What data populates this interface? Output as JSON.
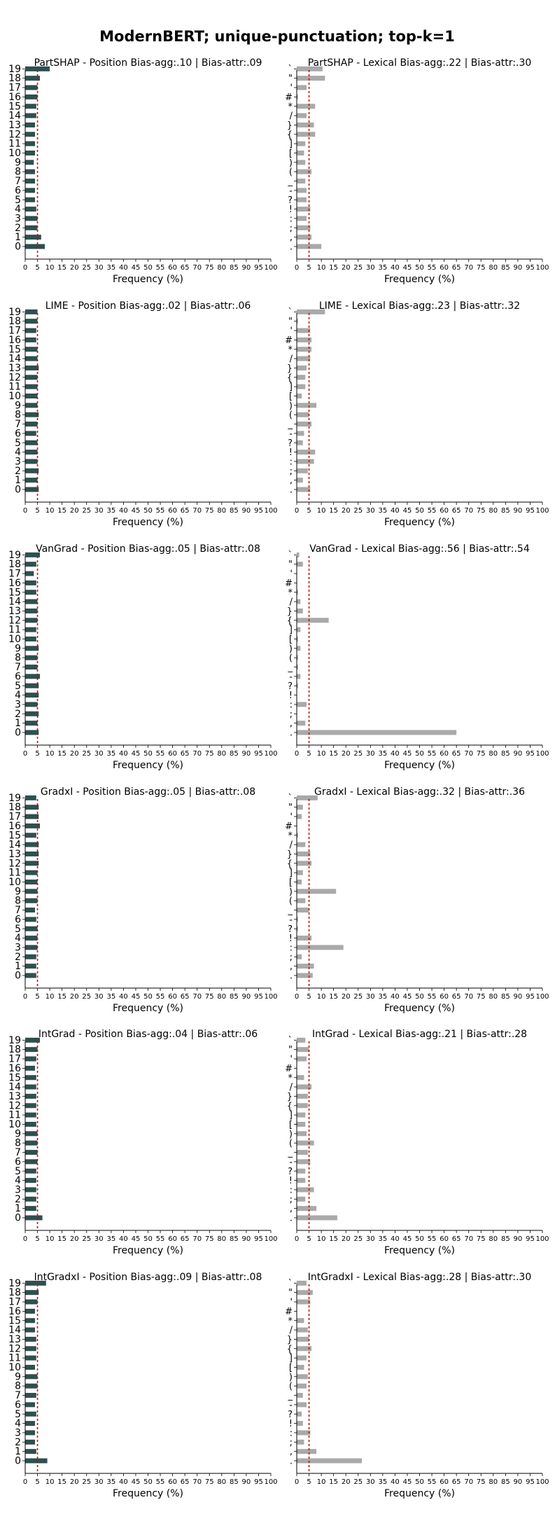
{
  "title": "ModernBERT; unique-punctuation; top-k=1",
  "colors": {
    "position_bar": "#2f4f4f",
    "lexical_bar": "#a9a9a9",
    "reference_line": "#cc0000"
  },
  "chart_data": [
    {
      "type": "bar",
      "orientation": "horizontal",
      "title": "PartSHAP - Position Bias-agg:.10 | Bias-attr:.09",
      "xlabel": "Frequency (%)",
      "xlim": [
        0,
        100
      ],
      "reference_x": 5,
      "bar_color": "#2f4f4f",
      "categories": [
        "0",
        "1",
        "2",
        "3",
        "4",
        "5",
        "6",
        "7",
        "8",
        "9",
        "10",
        "11",
        "12",
        "13",
        "14",
        "15",
        "16",
        "17",
        "18",
        "19"
      ],
      "values": [
        8,
        6.5,
        5,
        5,
        4.5,
        4,
        4,
        4,
        4,
        3.5,
        4,
        4,
        4,
        4,
        4.5,
        4.5,
        5,
        5,
        6,
        10
      ]
    },
    {
      "type": "bar",
      "orientation": "horizontal",
      "title": "PartSHAP - Lexical Bias-agg:.22 | Bias-attr:.30",
      "xlabel": "Frequency (%)",
      "xlim": [
        0,
        100
      ],
      "reference_x": 5,
      "bar_color": "#a9a9a9",
      "categories": [
        ".",
        ",",
        ";",
        ":",
        "!",
        "?",
        "-",
        "_",
        "(",
        ")",
        "[",
        "]",
        "{",
        "}",
        "/",
        "*",
        "#",
        "'",
        "\"",
        "`"
      ],
      "values": [
        10,
        6,
        5.5,
        4,
        5.5,
        4,
        4,
        3.5,
        6,
        3.5,
        3,
        3.5,
        7.5,
        7,
        4,
        7.5,
        0.5,
        4,
        11.5,
        10.5
      ]
    },
    {
      "type": "bar",
      "orientation": "horizontal",
      "title": "LIME - Position Bias-agg:.02 | Bias-attr:.06",
      "xlabel": "Frequency (%)",
      "xlim": [
        0,
        100
      ],
      "reference_x": 5,
      "bar_color": "#2f4f4f",
      "categories": [
        "0",
        "1",
        "2",
        "3",
        "4",
        "5",
        "6",
        "7",
        "8",
        "9",
        "10",
        "11",
        "12",
        "13",
        "14",
        "15",
        "16",
        "17",
        "18",
        "19"
      ],
      "values": [
        5.5,
        5,
        5.5,
        5,
        5,
        5,
        4.5,
        5,
        5.5,
        5,
        5,
        5,
        5,
        5.5,
        5,
        5,
        4.5,
        4.5,
        5,
        5
      ]
    },
    {
      "type": "bar",
      "orientation": "horizontal",
      "title": "LIME - Lexical Bias-agg:.23 | Bias-attr:.32",
      "xlabel": "Frequency (%)",
      "xlim": [
        0,
        100
      ],
      "reference_x": 5,
      "bar_color": "#a9a9a9",
      "categories": [
        ".",
        ",",
        ";",
        ":",
        "!",
        "?",
        "-",
        "_",
        "(",
        ")",
        "[",
        "]",
        "{",
        "}",
        "/",
        "*",
        "#",
        "'",
        "\"",
        "`"
      ],
      "values": [
        5.5,
        2.5,
        4.5,
        7,
        7.5,
        2.5,
        3,
        6,
        5,
        8,
        2,
        3.5,
        3.5,
        4,
        5.5,
        6,
        6,
        5.5,
        0.5,
        11.5
      ]
    },
    {
      "type": "bar",
      "orientation": "horizontal",
      "title": "VanGrad - Position Bias-agg:.05 | Bias-attr:.08",
      "xlabel": "Frequency (%)",
      "xlim": [
        0,
        100
      ],
      "reference_x": 5,
      "bar_color": "#2f4f4f",
      "categories": [
        "0",
        "1",
        "2",
        "3",
        "4",
        "5",
        "6",
        "7",
        "8",
        "9",
        "10",
        "11",
        "12",
        "13",
        "14",
        "15",
        "16",
        "17",
        "18",
        "19"
      ],
      "values": [
        5.5,
        5,
        5.5,
        5,
        5.5,
        5.5,
        6,
        5,
        5,
        5.5,
        4.5,
        4.5,
        5,
        5,
        5,
        4.5,
        4.5,
        3.5,
        4.5,
        6
      ]
    },
    {
      "type": "bar",
      "orientation": "horizontal",
      "title": "VanGrad - Lexical Bias-agg:.56 | Bias-attr:.54",
      "xlabel": "Frequency (%)",
      "xlim": [
        0,
        100
      ],
      "reference_x": 5,
      "bar_color": "#a9a9a9",
      "categories": [
        ".",
        ",",
        ";",
        ":",
        "!",
        "?",
        "-",
        "_",
        "(",
        ")",
        "[",
        "]",
        "{",
        "}",
        "/",
        "*",
        "#",
        "'",
        "\"",
        "`"
      ],
      "values": [
        65,
        3.5,
        0,
        4,
        0,
        0.5,
        1.5,
        0.5,
        0.5,
        1.5,
        0.5,
        1.5,
        13,
        2.5,
        1.5,
        0.5,
        0,
        0,
        2.5,
        1
      ]
    },
    {
      "type": "bar",
      "orientation": "horizontal",
      "title": "GradxI - Position Bias-agg:.05 | Bias-attr:.08",
      "xlabel": "Frequency (%)",
      "xlim": [
        0,
        100
      ],
      "reference_x": 5,
      "bar_color": "#2f4f4f",
      "categories": [
        "0",
        "1",
        "2",
        "3",
        "4",
        "5",
        "6",
        "7",
        "8",
        "9",
        "10",
        "11",
        "12",
        "13",
        "14",
        "15",
        "16",
        "17",
        "18",
        "19"
      ],
      "values": [
        4.5,
        4.5,
        4.5,
        5,
        5,
        5,
        4.5,
        4,
        5,
        5,
        5,
        5,
        5.5,
        5.5,
        5.5,
        4.5,
        6,
        5.5,
        5.5,
        4.5
      ]
    },
    {
      "type": "bar",
      "orientation": "horizontal",
      "title": "GradxI - Lexical Bias-agg:.32 | Bias-attr:.36",
      "xlabel": "Frequency (%)",
      "xlim": [
        0,
        100
      ],
      "reference_x": 5,
      "bar_color": "#a9a9a9",
      "categories": [
        ".",
        ",",
        ";",
        ":",
        "!",
        "?",
        "-",
        "_",
        "(",
        ")",
        "[",
        "]",
        "{",
        "}",
        "/",
        "*",
        "#",
        "'",
        "\"",
        "`"
      ],
      "values": [
        6.5,
        7,
        2,
        19,
        6,
        0.5,
        0.5,
        5,
        3.5,
        16,
        2,
        2.5,
        6,
        5.5,
        3.5,
        0.5,
        0,
        2,
        2.5,
        8.5
      ]
    },
    {
      "type": "bar",
      "orientation": "horizontal",
      "title": "IntGrad - Position Bias-agg:.04 | Bias-attr:.06",
      "xlabel": "Frequency (%)",
      "xlim": [
        0,
        100
      ],
      "reference_x": 5,
      "bar_color": "#2f4f4f",
      "categories": [
        "0",
        "1",
        "2",
        "3",
        "4",
        "5",
        "6",
        "7",
        "8",
        "9",
        "10",
        "11",
        "12",
        "13",
        "14",
        "15",
        "16",
        "17",
        "18",
        "19"
      ],
      "values": [
        7,
        4.5,
        4.5,
        4.5,
        4.5,
        4.5,
        5,
        5,
        5,
        5,
        4.5,
        4.5,
        4.5,
        4.5,
        4.5,
        4.5,
        4,
        4.5,
        5,
        6
      ]
    },
    {
      "type": "bar",
      "orientation": "horizontal",
      "title": "IntGrad - Lexical Bias-agg:.21 | Bias-attr:.28",
      "xlabel": "Frequency (%)",
      "xlim": [
        0,
        100
      ],
      "reference_x": 5,
      "bar_color": "#a9a9a9",
      "categories": [
        ".",
        ",",
        ";",
        ":",
        "!",
        "?",
        "-",
        "_",
        "(",
        ")",
        "[",
        "]",
        "{",
        "}",
        "/",
        "*",
        "#",
        "'",
        "\"",
        "`"
      ],
      "values": [
        16.5,
        8,
        3.5,
        7,
        3.5,
        3.5,
        5.5,
        4.5,
        7,
        4,
        3.5,
        3.5,
        4.5,
        4.5,
        6,
        3,
        0,
        4,
        5,
        3.5
      ]
    },
    {
      "type": "bar",
      "orientation": "horizontal",
      "title": "IntGradxI - Position Bias-agg:.09 | Bias-attr:.08",
      "xlabel": "Frequency (%)",
      "xlim": [
        0,
        100
      ],
      "reference_x": 5,
      "bar_color": "#2f4f4f",
      "categories": [
        "0",
        "1",
        "2",
        "3",
        "4",
        "5",
        "6",
        "7",
        "8",
        "9",
        "10",
        "11",
        "12",
        "13",
        "14",
        "15",
        "16",
        "17",
        "18",
        "19"
      ],
      "values": [
        9,
        4.5,
        4,
        4,
        4,
        4.5,
        4,
        4.5,
        5,
        5,
        4,
        4.5,
        4.5,
        4.5,
        4,
        4,
        4,
        5,
        5.5,
        8.5
      ]
    },
    {
      "type": "bar",
      "orientation": "horizontal",
      "title": "IntGradxI - Lexical Bias-agg:.28 | Bias-attr:.30",
      "xlabel": "Frequency (%)",
      "xlim": [
        0,
        100
      ],
      "reference_x": 5,
      "bar_color": "#a9a9a9",
      "categories": [
        ".",
        ",",
        ";",
        ":",
        "!",
        "?",
        "-",
        "_",
        "(",
        ")",
        "[",
        "]",
        "{",
        "}",
        "/",
        "*",
        "#",
        "'",
        "\"",
        "`"
      ],
      "values": [
        26.5,
        8,
        3,
        5.5,
        2.5,
        2,
        4,
        2.5,
        4,
        4.5,
        3,
        4,
        6,
        5,
        4.5,
        3,
        0,
        5.5,
        6.5,
        4
      ]
    }
  ]
}
